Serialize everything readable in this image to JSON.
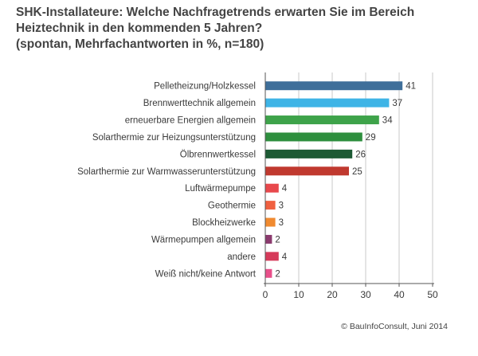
{
  "title_lines": [
    "SHK-Installateure: Welche Nachfragetrends erwarten Sie im Bereich",
    "Heiztechnik in den kommenden 5 Jahren?",
    "(spontan, Mehrfachantworten in %, n=180)"
  ],
  "credit": "© BauInfoConsult, Juni 2014",
  "chart_data": {
    "type": "bar",
    "orientation": "horizontal",
    "categories": [
      "Pelletheizung/Holzkessel",
      "Brennwerttechnik allgemein",
      "erneuerbare Energien allgemein",
      "Solarthermie zur Heizungsunterstützung",
      "Ölbrennwertkessel",
      "Solarthermie zur Warmwasserunterstützung",
      "Luftwärmepumpe",
      "Geothermie",
      "Blockheizwerke",
      "Wärmepumpen allgemein",
      "andere",
      "Weiß nicht/keine Antwort"
    ],
    "values": [
      41,
      37,
      34,
      29,
      26,
      25,
      4,
      3,
      3,
      2,
      4,
      2
    ],
    "colors": [
      "#3f6f9a",
      "#3eb4e6",
      "#3ea34a",
      "#2e8f3e",
      "#1d5a34",
      "#c0392f",
      "#e8484c",
      "#f06040",
      "#f08a30",
      "#8b3a6e",
      "#d63a5a",
      "#e8508a"
    ],
    "xlim": [
      0,
      50
    ],
    "xticks": [
      0,
      10,
      20,
      30,
      40,
      50
    ],
    "grid": true,
    "xlabel": "",
    "ylabel": ""
  }
}
